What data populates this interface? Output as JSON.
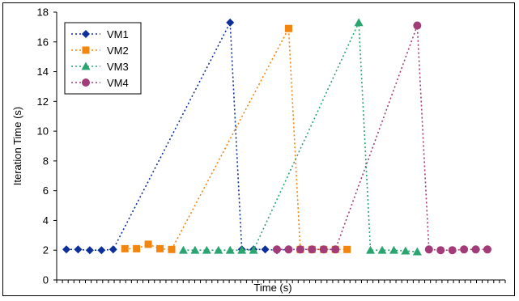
{
  "chart_data": {
    "type": "line",
    "title": "",
    "xlabel": "Time (s)",
    "ylabel": "Iteration Time (s)",
    "ylim": [
      0,
      18
    ],
    "yticks": [
      0,
      2,
      4,
      6,
      8,
      10,
      12,
      14,
      16,
      18
    ],
    "x_tick_labels_shown": false,
    "grid": false,
    "legend_position": "top-left",
    "x": [
      1,
      2,
      3,
      4,
      5,
      6,
      7,
      8,
      9,
      10,
      11,
      12,
      13,
      14,
      15,
      16,
      17,
      18,
      19,
      20,
      21,
      22,
      23,
      24,
      25,
      26,
      27,
      28,
      29,
      30,
      31,
      32,
      33,
      34,
      35,
      36,
      37
    ],
    "series": [
      {
        "name": "VM1",
        "color": "#0d2f9a",
        "marker": "diamond",
        "values": [
          2.05,
          2.05,
          2.0,
          2.0,
          2.05,
          null,
          null,
          null,
          null,
          null,
          null,
          null,
          null,
          null,
          17.3,
          2.05,
          2.05,
          2.05,
          2.0,
          2.05,
          null,
          null,
          null,
          null,
          null,
          null,
          null,
          null,
          null,
          null,
          null,
          null,
          null,
          null,
          null,
          null,
          null
        ]
      },
      {
        "name": "VM2",
        "color": "#f2850f",
        "marker": "square",
        "values": [
          null,
          null,
          null,
          null,
          null,
          2.1,
          2.1,
          2.4,
          2.1,
          2.05,
          null,
          null,
          null,
          null,
          null,
          null,
          null,
          null,
          null,
          16.9,
          2.05,
          2.05,
          2.05,
          2.05,
          2.05,
          null,
          null,
          null,
          null,
          null,
          null,
          null,
          null,
          null,
          null,
          null,
          null
        ]
      },
      {
        "name": "VM3",
        "color": "#2aa570",
        "marker": "triangle",
        "values": [
          null,
          null,
          null,
          null,
          null,
          null,
          null,
          null,
          null,
          null,
          2.0,
          2.0,
          2.0,
          2.0,
          2.0,
          2.0,
          2.0,
          null,
          null,
          null,
          null,
          null,
          null,
          null,
          null,
          17.3,
          2.0,
          2.0,
          2.0,
          1.95,
          1.9,
          null,
          null,
          null,
          null,
          null,
          null
        ]
      },
      {
        "name": "VM4",
        "color": "#a23b78",
        "marker": "circle",
        "values": [
          null,
          null,
          null,
          null,
          null,
          null,
          null,
          null,
          null,
          null,
          null,
          null,
          null,
          null,
          null,
          null,
          null,
          null,
          2.05,
          2.05,
          2.05,
          2.05,
          2.05,
          2.05,
          null,
          null,
          null,
          null,
          null,
          null,
          17.1,
          2.05,
          2.0,
          2.0,
          2.05,
          2.05,
          2.05
        ]
      }
    ]
  }
}
